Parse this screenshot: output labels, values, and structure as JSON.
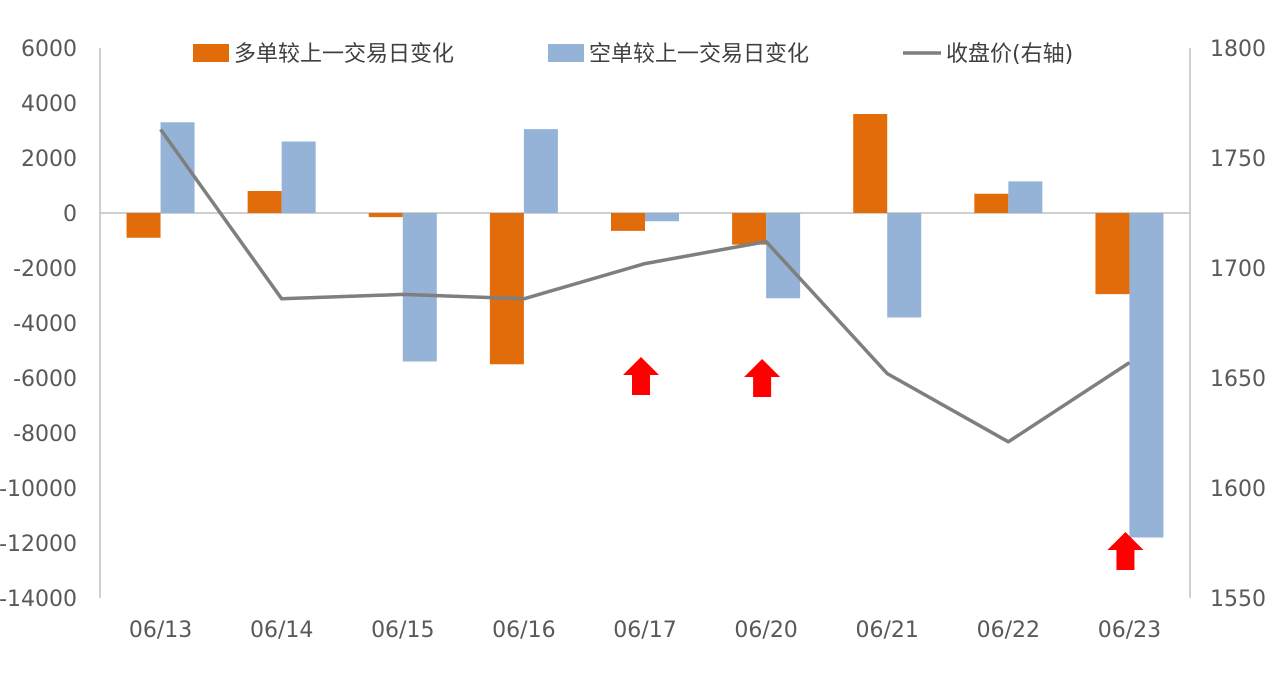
{
  "chart_data": {
    "type": "bar",
    "title": "",
    "xlabel": "",
    "ylabel": "",
    "categories": [
      "06/13",
      "06/14",
      "06/15",
      "06/16",
      "06/17",
      "06/20",
      "06/21",
      "06/22",
      "06/23"
    ],
    "series": [
      {
        "name": "多单较上一交易日变化",
        "type": "bar",
        "axis": "left",
        "color": "#E26B0A",
        "values": [
          -900,
          800,
          -150,
          -5500,
          -650,
          -1150,
          3600,
          700,
          -2950
        ]
      },
      {
        "name": "空单较上一交易日变化",
        "type": "bar",
        "axis": "left",
        "color": "#95B3D7",
        "values": [
          3300,
          2600,
          -5400,
          3050,
          -300,
          -3100,
          -3800,
          1150,
          -11800
        ]
      },
      {
        "name": "收盘价(右轴)",
        "type": "line",
        "axis": "right",
        "color": "#7F7F7F",
        "values": [
          1763,
          1686,
          1688,
          1686,
          1702,
          1712,
          1652,
          1621,
          1657
        ]
      }
    ],
    "y_left": {
      "min": -14000,
      "max": 6000,
      "step": 2000,
      "ticks": [
        "6000",
        "4000",
        "2000",
        "0",
        "-2000",
        "-4000",
        "-6000",
        "-8000",
        "-10000",
        "-12000",
        "-14000"
      ]
    },
    "y_right": {
      "min": 1550,
      "max": 1800,
      "step": 50,
      "ticks": [
        "1800",
        "1750",
        "1700",
        "1650",
        "1600",
        "1550"
      ]
    },
    "grid": false,
    "legend_position": "top",
    "annotations": [
      {
        "type": "up-arrow",
        "category": "06/17",
        "color": "#FF0000"
      },
      {
        "type": "up-arrow",
        "category": "06/20",
        "color": "#FF0000"
      },
      {
        "type": "up-arrow",
        "category": "06/23",
        "color": "#FF0000"
      }
    ]
  }
}
